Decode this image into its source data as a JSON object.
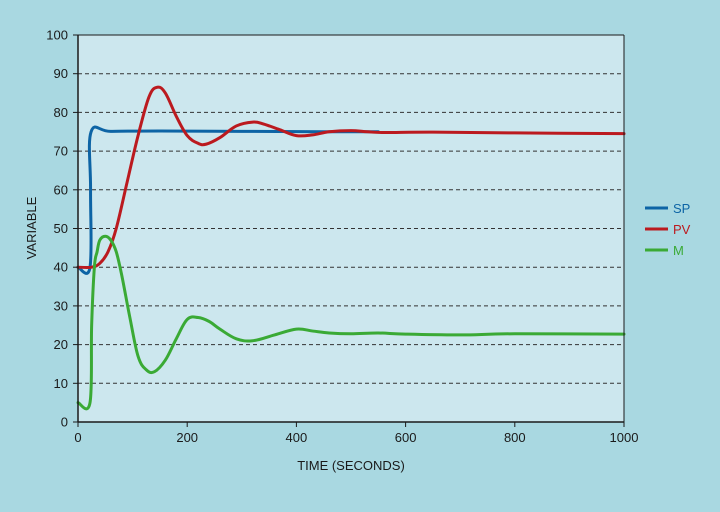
{
  "chart_data": {
    "type": "line",
    "title": "",
    "xlabel": "TIME (SECONDS)",
    "ylabel": "VARIABLE",
    "xlim": [
      0,
      1000
    ],
    "ylim": [
      0,
      100
    ],
    "xticks": [
      0,
      200,
      400,
      600,
      800,
      1000
    ],
    "yticks": [
      0,
      10,
      20,
      30,
      40,
      50,
      60,
      70,
      80,
      90,
      100
    ],
    "grid": "horizontal dashed",
    "legend_position": "right",
    "colors": {
      "background": "#a9d8e1",
      "plot_area": "#cce7ee",
      "axis": "#1a1a1a",
      "grid": "#333333"
    },
    "series": [
      {
        "name": "SP",
        "color": "#0d64a5",
        "x": [
          0,
          22,
          23,
          24,
          60,
          150,
          300,
          450,
          550
        ],
        "y": [
          40,
          40,
          60,
          75,
          75.1,
          75.2,
          75.1,
          75,
          75
        ]
      },
      {
        "name": "PV",
        "color": "#bb1a1f",
        "x": [
          0,
          25,
          40,
          55,
          70,
          90,
          110,
          130,
          145,
          160,
          180,
          200,
          220,
          235,
          260,
          290,
          320,
          340,
          370,
          400,
          430,
          460,
          500,
          530,
          560,
          650,
          800,
          1000
        ],
        "y": [
          40,
          40,
          41,
          44,
          50,
          62,
          74,
          84,
          86.5,
          85,
          79,
          74,
          72,
          71.8,
          73.5,
          76.5,
          77.5,
          77,
          75.5,
          74,
          74.2,
          75,
          75.3,
          75,
          74.8,
          74.9,
          74.7,
          74.5
        ]
      },
      {
        "name": "M",
        "color": "#3aaa35",
        "x": [
          0,
          22,
          25,
          30,
          35,
          40,
          50,
          60,
          70,
          80,
          95,
          110,
          125,
          140,
          160,
          180,
          200,
          220,
          240,
          260,
          290,
          320,
          360,
          400,
          430,
          460,
          500,
          550,
          600,
          700,
          800,
          1000
        ],
        "y": [
          5,
          5,
          25,
          40,
          44,
          47,
          48,
          47,
          44,
          38,
          27,
          17,
          13.5,
          13,
          16,
          21.5,
          26.5,
          27,
          26,
          24,
          21.5,
          21,
          22.5,
          24,
          23.5,
          23,
          22.8,
          23,
          22.7,
          22.5,
          22.8,
          22.7
        ]
      }
    ]
  }
}
